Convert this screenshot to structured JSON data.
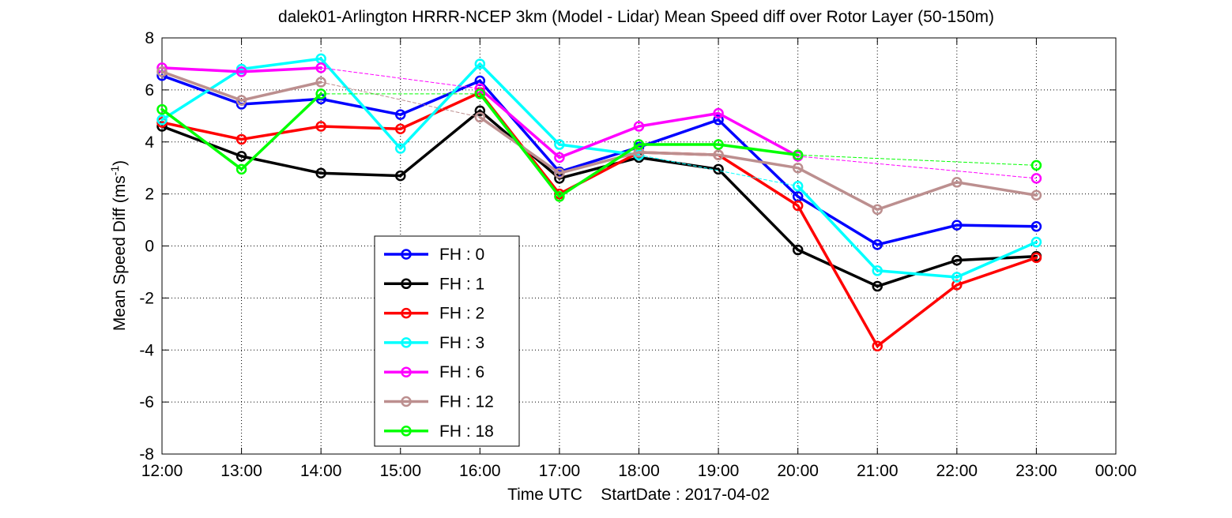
{
  "chart_data": {
    "type": "line",
    "title": "dalek01-Arlington HRRR-NCEP 3km (Model - Lidar) Mean Speed diff over Rotor Layer (50-150m)",
    "xlabel": "Time UTC    StartDate : 2017-04-02",
    "ylabel": "Mean Speed Diff (ms",
    "ylabel_sup": "-1",
    "ylabel_end": ")",
    "x_tick_labels": [
      "12:00",
      "13:00",
      "14:00",
      "15:00",
      "16:00",
      "17:00",
      "18:00",
      "19:00",
      "20:00",
      "21:00",
      "22:00",
      "23:00",
      "00:00"
    ],
    "y_ticks": [
      -8,
      -6,
      -4,
      -2,
      0,
      2,
      4,
      6,
      8
    ],
    "ylim": [
      -8,
      8
    ],
    "grid": true,
    "legend_position": "lower-left-center",
    "series": [
      {
        "name": "FH : 0",
        "color": "#0000ff",
        "values": [
          6.55,
          5.45,
          5.65,
          5.05,
          6.35,
          2.85,
          3.8,
          4.85,
          1.9,
          0.05,
          0.8,
          0.75
        ],
        "dashed_from": null
      },
      {
        "name": "FH : 1",
        "color": "#000000",
        "values": [
          4.6,
          3.45,
          2.8,
          2.7,
          5.2,
          2.6,
          3.4,
          2.95,
          -0.15,
          -1.55,
          -0.55,
          -0.4
        ],
        "dashed_from": null
      },
      {
        "name": "FH : 2",
        "color": "#ff0000",
        "values": [
          4.75,
          4.1,
          4.6,
          4.5,
          5.9,
          2.0,
          3.6,
          3.5,
          1.55,
          -3.85,
          -1.5,
          -0.45
        ],
        "dashed_from": null
      },
      {
        "name": "FH : 3",
        "color": "#00ffff",
        "values": [
          4.85,
          6.8,
          7.2,
          3.75,
          7.0,
          3.9,
          3.5,
          null,
          2.3,
          -0.95,
          -1.2,
          0.15
        ],
        "dashed_from": null
      },
      {
        "name": "FH : 6",
        "color": "#ff00ff",
        "values": [
          6.85,
          6.7,
          6.85,
          null,
          6.05,
          3.4,
          4.6,
          5.1,
          3.45,
          null,
          null,
          2.6
        ],
        "dashed_from": null
      },
      {
        "name": "FH : 12",
        "color": "#bc8f8f",
        "values": [
          6.7,
          5.6,
          6.3,
          null,
          4.95,
          2.8,
          3.6,
          3.5,
          3.0,
          1.4,
          2.45,
          1.95
        ],
        "dashed_from": null
      },
      {
        "name": "FH : 18",
        "color": "#00ff00",
        "values": [
          5.25,
          2.95,
          5.85,
          null,
          5.85,
          1.9,
          3.9,
          3.9,
          3.5,
          null,
          null,
          3.1
        ],
        "dashed_from": null
      }
    ]
  }
}
